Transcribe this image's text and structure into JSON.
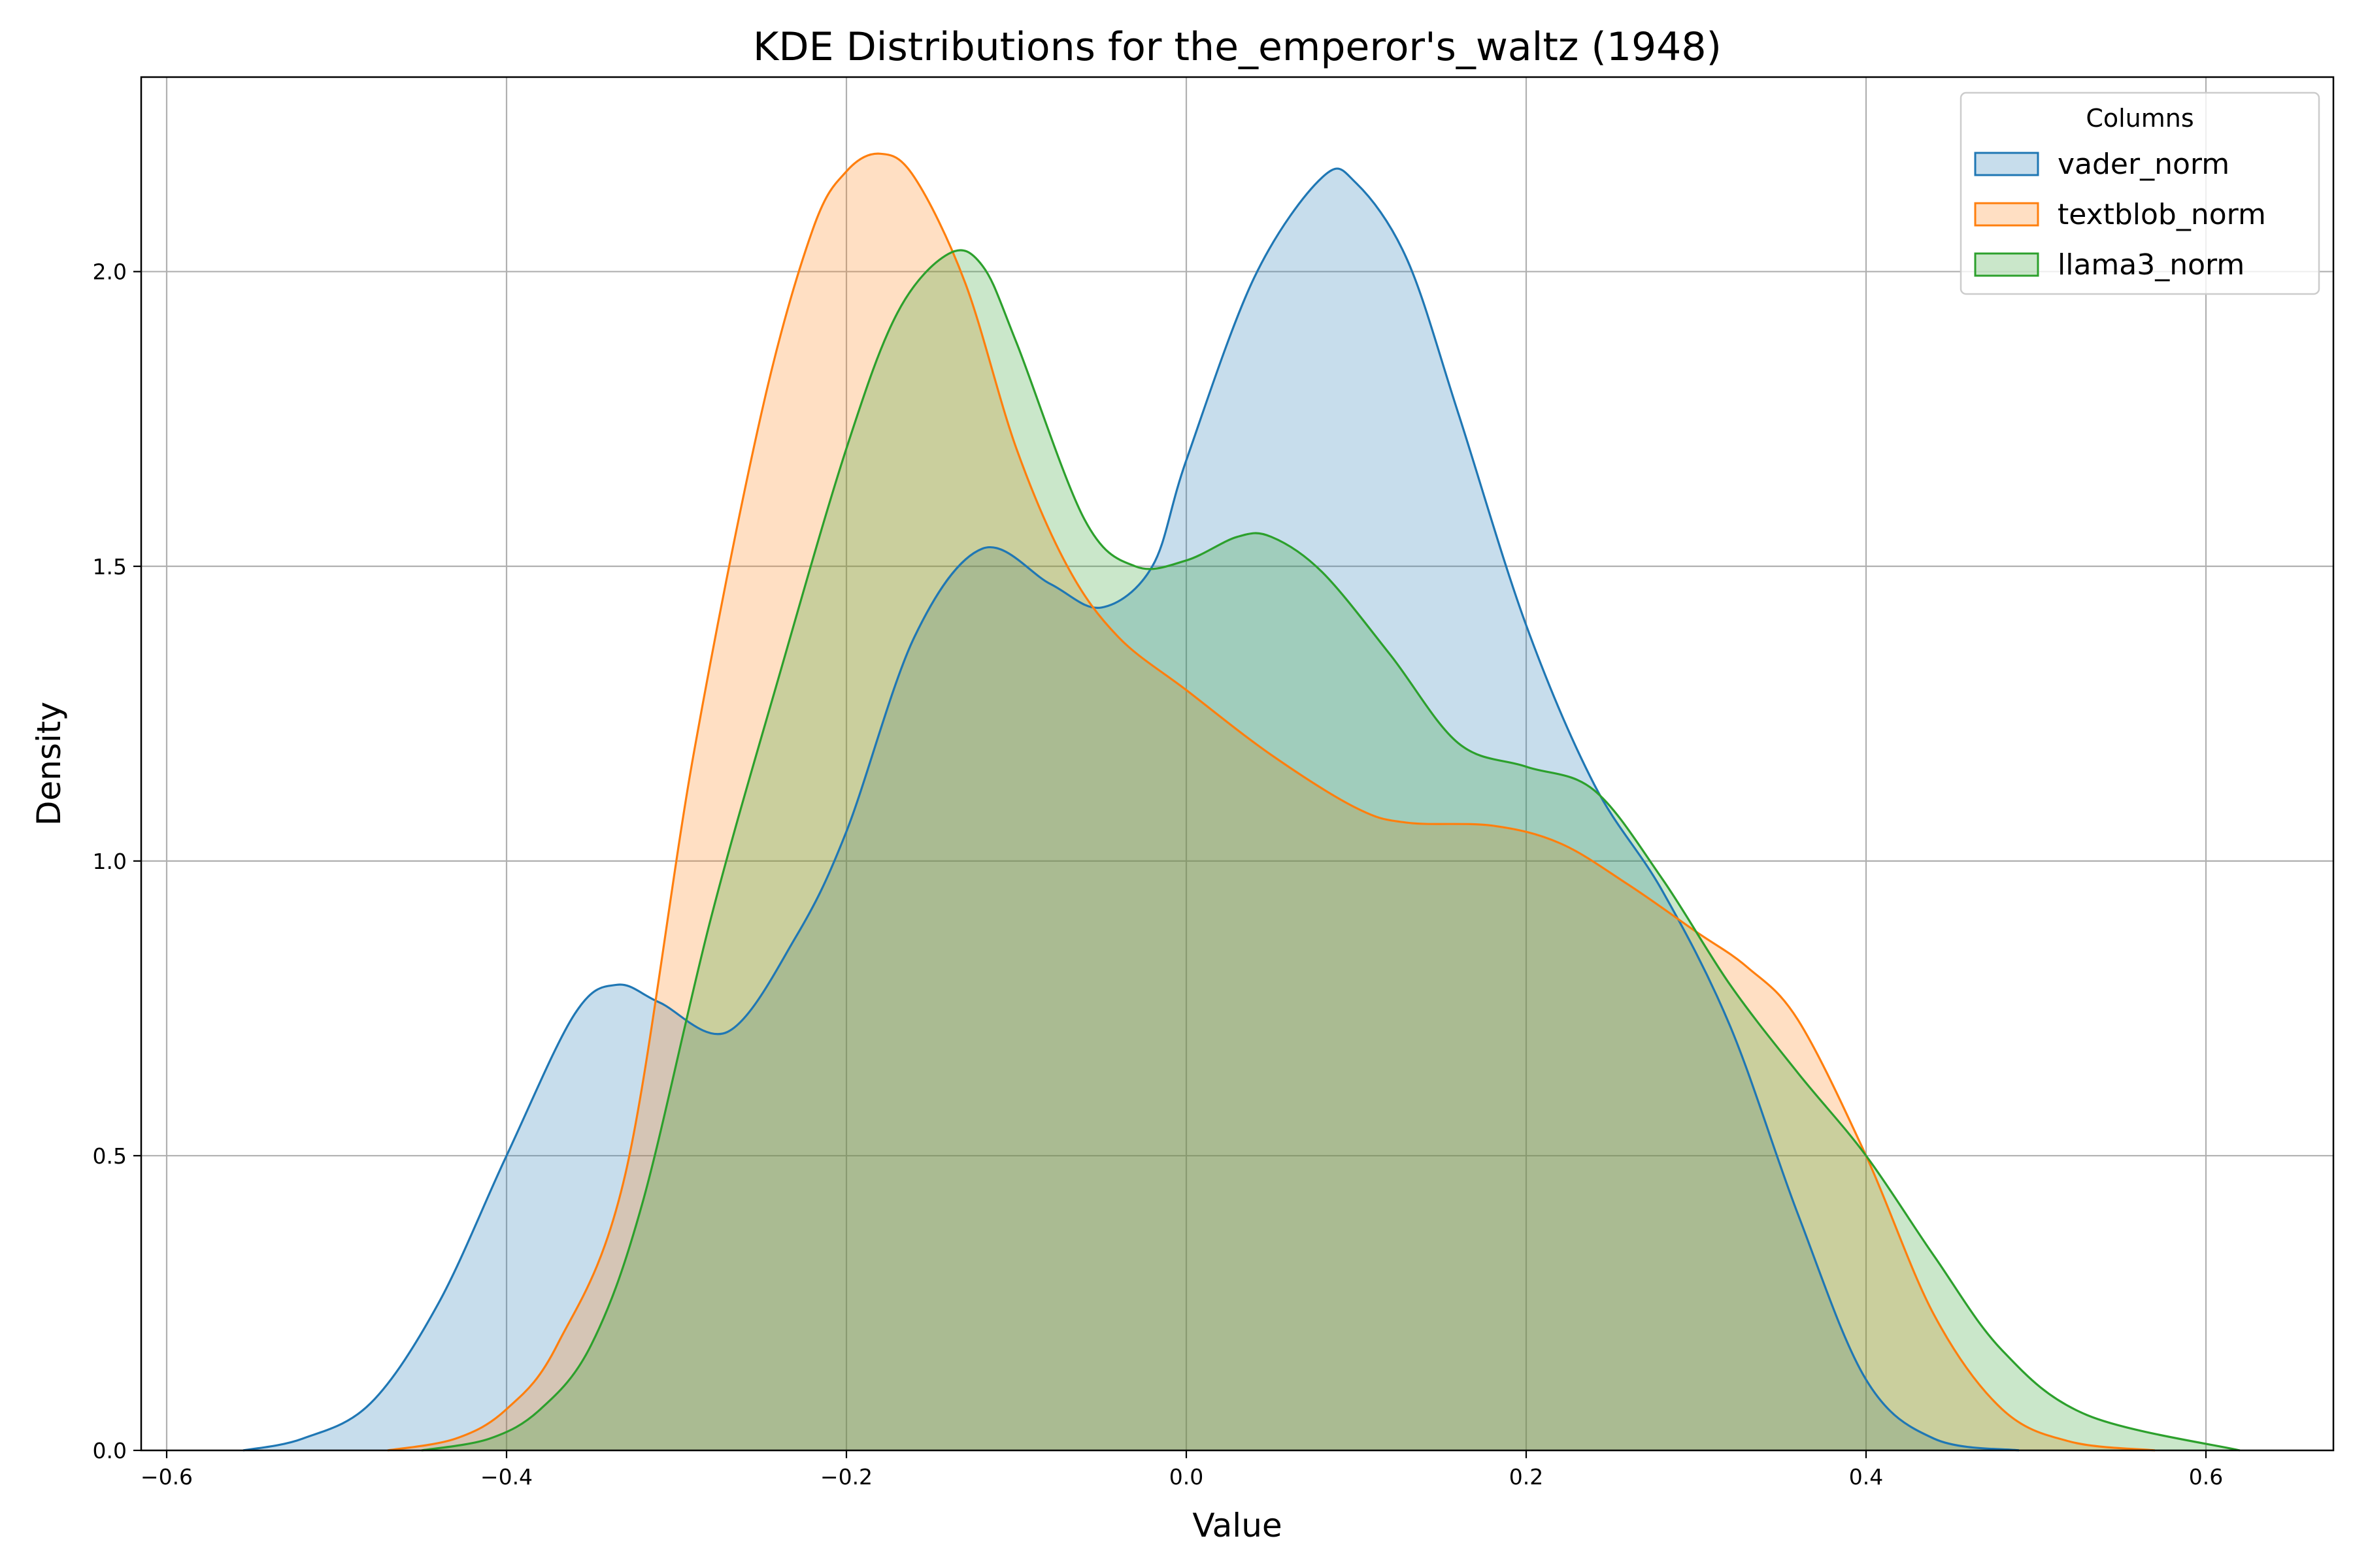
{
  "chart_data": {
    "type": "area",
    "title": "KDE Distributions for the_emperor's_waltz (1948)",
    "xlabel": "Value",
    "ylabel": "Density",
    "xlim": [
      -0.615,
      0.675
    ],
    "ylim": [
      0.0,
      2.33
    ],
    "xticks": [
      -0.6,
      -0.4,
      -0.2,
      0.0,
      0.2,
      0.4,
      0.6
    ],
    "xtick_labels": [
      "−0.6",
      "−0.4",
      "−0.2",
      "0.0",
      "0.2",
      "0.4",
      "0.6"
    ],
    "yticks": [
      0.0,
      0.5,
      1.0,
      1.5,
      2.0
    ],
    "ytick_labels": [
      "0.0",
      "0.5",
      "1.0",
      "1.5",
      "2.0"
    ],
    "grid": true,
    "legend": {
      "title": "Columns",
      "placement": "top-right"
    },
    "series": [
      {
        "name": "vader_norm",
        "color": "#1f77b4",
        "fill_opacity": 0.25,
        "x": [
          -0.555,
          -0.52,
          -0.48,
          -0.44,
          -0.4,
          -0.36,
          -0.335,
          -0.31,
          -0.27,
          -0.23,
          -0.2,
          -0.16,
          -0.12,
          -0.08,
          -0.05,
          -0.02,
          0.0,
          0.04,
          0.08,
          0.1,
          0.13,
          0.16,
          0.2,
          0.24,
          0.28,
          0.32,
          0.36,
          0.4,
          0.44,
          0.49
        ],
        "y": [
          0.0,
          0.02,
          0.08,
          0.25,
          0.5,
          0.74,
          0.79,
          0.76,
          0.71,
          0.87,
          1.05,
          1.38,
          1.53,
          1.47,
          1.43,
          1.5,
          1.68,
          1.99,
          2.16,
          2.15,
          2.02,
          1.76,
          1.4,
          1.13,
          0.95,
          0.72,
          0.4,
          0.12,
          0.02,
          0.0
        ]
      },
      {
        "name": "textblob_norm",
        "color": "#ff7f0e",
        "fill_opacity": 0.25,
        "x": [
          -0.47,
          -0.43,
          -0.4,
          -0.37,
          -0.33,
          -0.29,
          -0.25,
          -0.22,
          -0.2,
          -0.18,
          -0.16,
          -0.13,
          -0.1,
          -0.07,
          -0.04,
          0.0,
          0.05,
          0.1,
          0.13,
          0.18,
          0.22,
          0.26,
          0.3,
          0.33,
          0.36,
          0.4,
          0.44,
          0.48,
          0.52,
          0.57
        ],
        "y": [
          0.0,
          0.02,
          0.07,
          0.18,
          0.47,
          1.18,
          1.76,
          2.07,
          2.17,
          2.2,
          2.16,
          1.98,
          1.7,
          1.5,
          1.38,
          1.29,
          1.18,
          1.09,
          1.065,
          1.06,
          1.03,
          0.96,
          0.88,
          0.82,
          0.73,
          0.5,
          0.23,
          0.07,
          0.015,
          0.0
        ]
      },
      {
        "name": "llama3_norm",
        "color": "#2ca02c",
        "fill_opacity": 0.25,
        "x": [
          -0.45,
          -0.41,
          -0.38,
          -0.35,
          -0.32,
          -0.28,
          -0.24,
          -0.2,
          -0.17,
          -0.14,
          -0.12,
          -0.1,
          -0.06,
          -0.03,
          0.0,
          0.03,
          0.05,
          0.08,
          0.12,
          0.16,
          0.2,
          0.24,
          0.28,
          0.32,
          0.36,
          0.4,
          0.44,
          0.48,
          0.53,
          0.62
        ],
        "y": [
          0.0,
          0.02,
          0.07,
          0.18,
          0.42,
          0.9,
          1.31,
          1.7,
          1.93,
          2.03,
          2.01,
          1.88,
          1.58,
          1.5,
          1.51,
          1.55,
          1.55,
          1.49,
          1.35,
          1.2,
          1.16,
          1.12,
          0.97,
          0.79,
          0.64,
          0.5,
          0.33,
          0.17,
          0.06,
          0.0
        ]
      }
    ]
  }
}
